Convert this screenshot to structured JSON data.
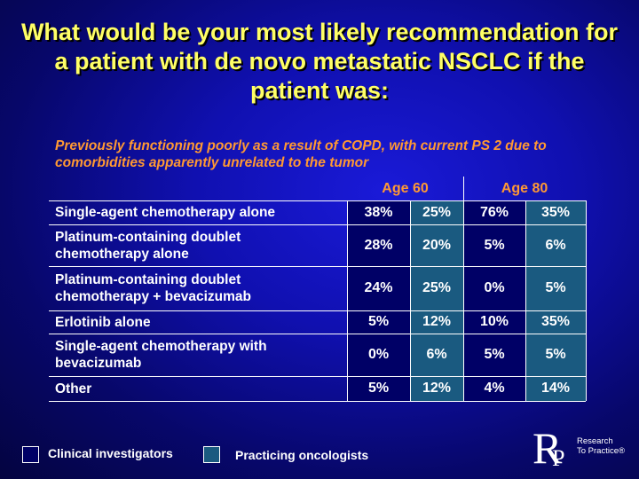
{
  "title": "What would be your most likely recommendation for a patient with de novo metastatic NSCLC if the patient was:",
  "subtitle": "Previously functioning poorly as a result of COPD, with current PS 2 due to comorbidities apparently unrelated to the tumor",
  "colors": {
    "title": "#ffff66",
    "subtitle": "#ff9933",
    "clinical_fill": "#000066",
    "practicing_fill": "#1a5a80"
  },
  "legend": {
    "clinical": "Clinical investigators",
    "practicing": "Practicing oncologists"
  },
  "logo": {
    "letter_r": "R",
    "letter_p": "P",
    "line1": "Research",
    "line2": "To Practice®"
  },
  "chart_data": {
    "type": "table",
    "groups": [
      "Age 60",
      "Age 80"
    ],
    "series": [
      {
        "name": "Clinical investigators",
        "group": "Age 60"
      },
      {
        "name": "Practicing oncologists",
        "group": "Age 60"
      },
      {
        "name": "Clinical investigators",
        "group": "Age 80"
      },
      {
        "name": "Practicing oncologists",
        "group": "Age 80"
      }
    ],
    "rows": [
      {
        "label": "Single-agent chemotherapy alone",
        "values": [
          "38%",
          "25%",
          "76%",
          "35%"
        ]
      },
      {
        "label": "Platinum-containing doublet chemotherapy alone",
        "values": [
          "28%",
          "20%",
          "5%",
          "6%"
        ]
      },
      {
        "label": "Platinum-containing doublet chemotherapy + bevacizumab",
        "values": [
          "24%",
          "25%",
          "0%",
          "5%"
        ]
      },
      {
        "label": "Erlotinib alone",
        "values": [
          "5%",
          "12%",
          "10%",
          "35%"
        ]
      },
      {
        "label": "Single-agent chemotherapy with bevacizumab",
        "values": [
          "0%",
          "6%",
          "5%",
          "5%"
        ]
      },
      {
        "label": "Other",
        "values": [
          "5%",
          "12%",
          "4%",
          "14%"
        ]
      }
    ]
  }
}
